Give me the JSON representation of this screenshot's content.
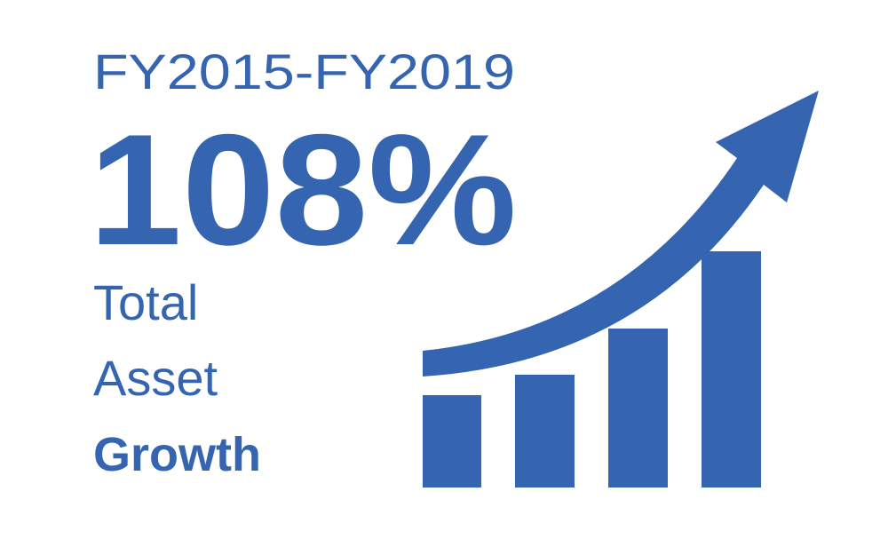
{
  "header": {
    "period": "FY2015-FY2019",
    "figure": "108%",
    "caption": [
      "Total",
      "Asset",
      "Growth"
    ]
  }
}
